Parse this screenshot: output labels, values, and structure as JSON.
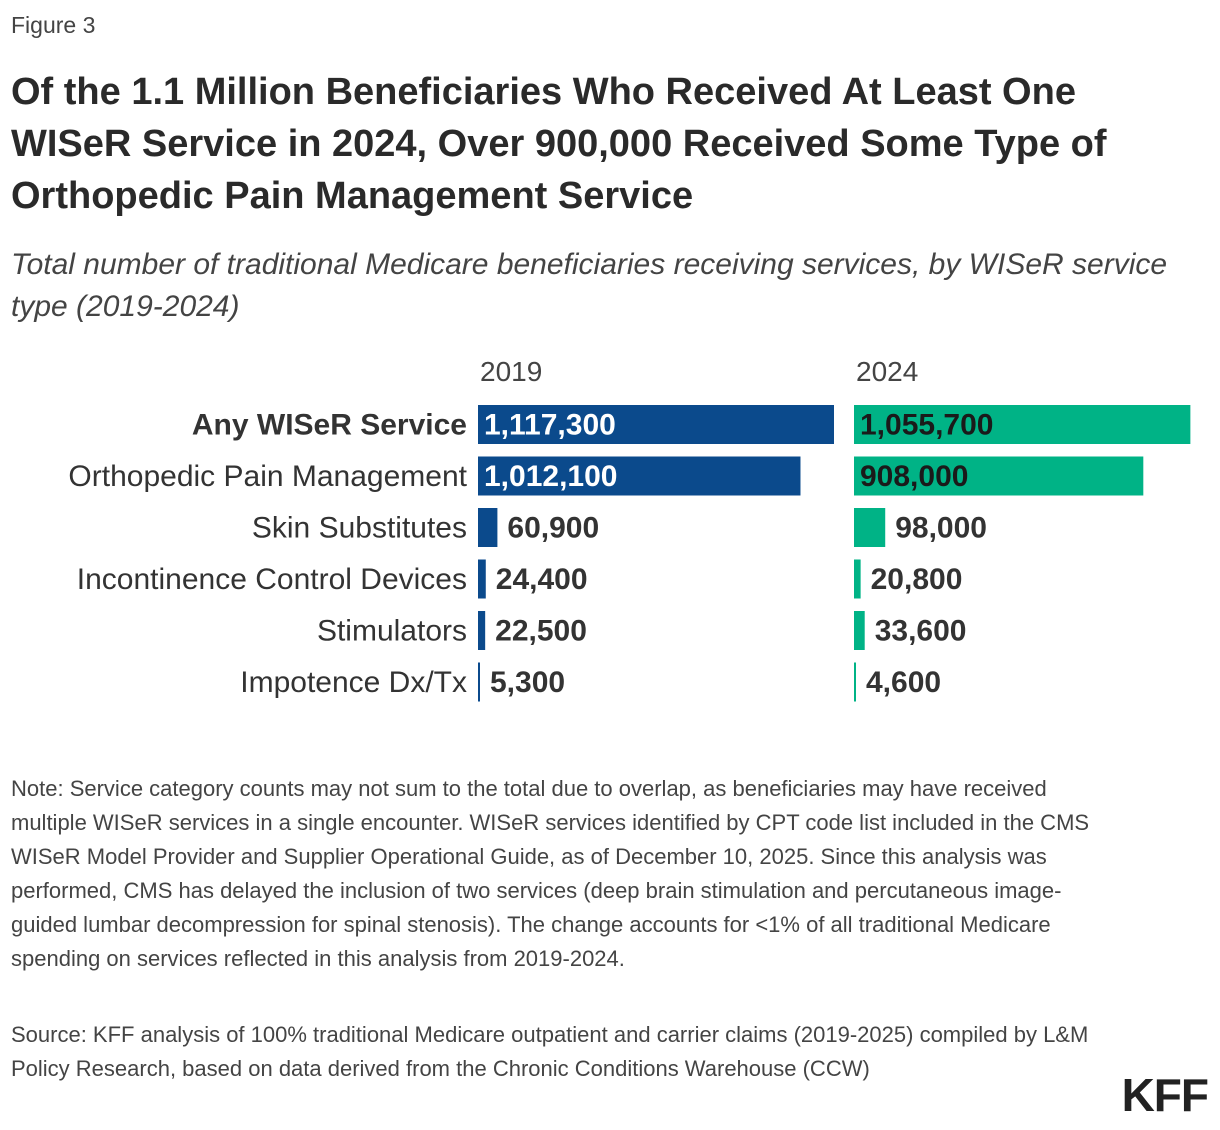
{
  "figure_label": "Figure 3",
  "chart_data": {
    "type": "bar",
    "title": "Of the 1.1 Million Beneficiaries Who Received At Least One WISeR Service in 2024, Over 900,000 Received Some Type of Orthopedic Pain Management Service",
    "subtitle": "Total number of traditional Medicare beneficiaries receiving services, by WISeR service type (2019-2024)",
    "categories": [
      "Any WISeR Service",
      "Orthopedic Pain Management",
      "Skin Substitutes",
      "Incontinence Control Devices",
      "Stimulators",
      "Impotence Dx/Tx"
    ],
    "series": [
      {
        "name": "2019",
        "color": "#0b4a8c",
        "values": [
          1117300,
          1012100,
          60900,
          24400,
          22500,
          5300
        ],
        "labels": [
          "1,117,300",
          "1,012,100",
          "60,900",
          "24,400",
          "22,500",
          "5,300"
        ]
      },
      {
        "name": "2024",
        "color": "#00b386",
        "values": [
          1055700,
          908000,
          98000,
          20800,
          33600,
          4600
        ],
        "labels": [
          "1,055,700",
          "908,000",
          "98,000",
          "20,800",
          "33,600",
          "4,600"
        ]
      }
    ],
    "xlim": [
      0,
      1117300
    ],
    "grid": false,
    "legend": "none"
  },
  "note": "Note: Service category counts may not sum to the total due to overlap, as beneficiaries may have received multiple WISeR services in a single encounter. WISeR services identified by CPT code list included in the CMS WISeR Model Provider and Supplier Operational Guide, as of December 10, 2025. Since this analysis was performed, CMS has delayed the inclusion of two services (deep brain stimulation and percutaneous image-guided lumbar decompression for spinal stenosis). The change accounts for <1% of all traditional Medicare spending on services reflected in this analysis from 2019-2024.",
  "source": "Source: KFF analysis of 100% traditional Medicare outpatient and carrier claims (2019-2025) compiled by L&M Policy Research, based on data derived from the Chronic Conditions Warehouse (CCW)",
  "logo": "KFF"
}
